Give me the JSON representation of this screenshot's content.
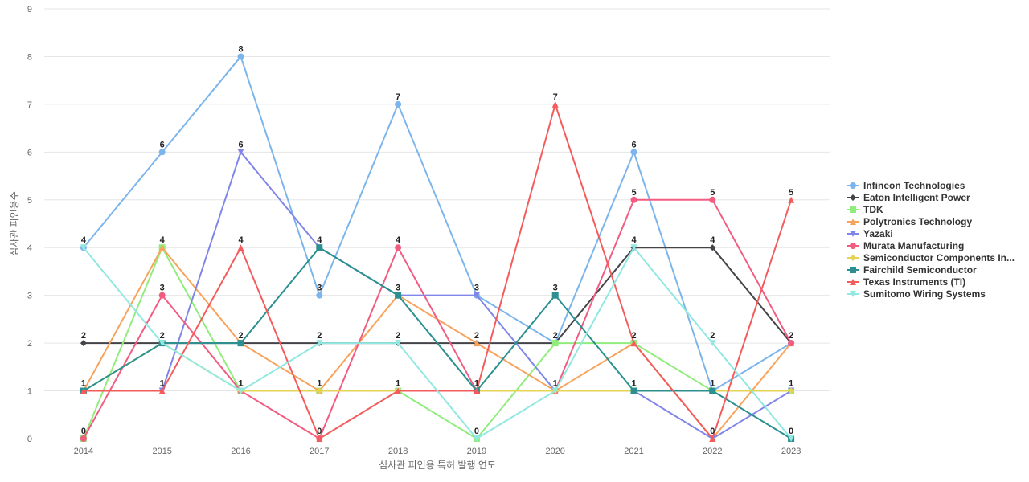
{
  "chart_data": {
    "type": "line",
    "title": "",
    "xlabel": "심사관 피인용 특허 발행 연도",
    "ylabel": "심사관 피인용수",
    "ylim": [
      0,
      9
    ],
    "grid": true,
    "legend_position": "right",
    "categories": [
      "2014",
      "2015",
      "2016",
      "2017",
      "2018",
      "2019",
      "2020",
      "2021",
      "2022",
      "2023"
    ],
    "series": [
      {
        "name": "Infineon Technologies",
        "color": "#7cb5ec",
        "marker": "circle",
        "values": [
          4,
          6,
          8,
          3,
          7,
          3,
          2,
          6,
          1,
          2
        ]
      },
      {
        "name": "Eaton Intelligent Power",
        "color": "#434348",
        "marker": "diamond",
        "values": [
          2,
          2,
          2,
          2,
          2,
          2,
          2,
          4,
          4,
          2
        ]
      },
      {
        "name": "TDK",
        "color": "#90ed7d",
        "marker": "square",
        "values": [
          0,
          4,
          1,
          1,
          1,
          0,
          2,
          2,
          1,
          1
        ]
      },
      {
        "name": "Polytronics Technology",
        "color": "#f7a35c",
        "marker": "triangle",
        "values": [
          1,
          4,
          2,
          1,
          3,
          2,
          1,
          2,
          0,
          2
        ]
      },
      {
        "name": "Yazaki",
        "color": "#8085e9",
        "marker": "triangle-down",
        "values": [
          1,
          1,
          6,
          4,
          3,
          3,
          1,
          1,
          0,
          1
        ]
      },
      {
        "name": "Murata Manufacturing",
        "color": "#f15c80",
        "marker": "circle",
        "values": [
          0,
          3,
          1,
          0,
          4,
          1,
          1,
          5,
          5,
          2
        ]
      },
      {
        "name": "Semiconductor Components In...",
        "color": "#e4d354",
        "marker": "diamond",
        "values": [
          1,
          2,
          1,
          1,
          1,
          1,
          1,
          1,
          1,
          1
        ]
      },
      {
        "name": "Fairchild Semiconductor",
        "color": "#2b908f",
        "marker": "square",
        "values": [
          1,
          2,
          2,
          4,
          3,
          1,
          3,
          1,
          1,
          0
        ]
      },
      {
        "name": "Texas Instruments (TI)",
        "color": "#f45b5b",
        "marker": "triangle",
        "values": [
          1,
          1,
          4,
          0,
          1,
          1,
          7,
          2,
          0,
          5
        ]
      },
      {
        "name": "Sumitomo Wiring Systems",
        "color": "#91e8e1",
        "marker": "triangle-down",
        "values": [
          4,
          2,
          1,
          2,
          2,
          0,
          1,
          4,
          2,
          0
        ]
      }
    ],
    "data_labels": [
      {
        "category": "2014",
        "series": [
          "Infineon Technologies",
          "Eaton Intelligent Power",
          "Polytronics Technology",
          "Murata Manufacturing"
        ]
      },
      {
        "category": "2015",
        "series": [
          "Infineon Technologies",
          "Eaton Intelligent Power",
          "TDK",
          "Murata Manufacturing",
          "Texas Instruments (TI)"
        ]
      },
      {
        "category": "2016",
        "series": [
          "Infineon Technologies",
          "Eaton Intelligent Power",
          "TDK",
          "Yazaki",
          "Texas Instruments (TI)"
        ]
      },
      {
        "category": "2017",
        "series": [
          "Infineon Technologies",
          "Eaton Intelligent Power",
          "TDK",
          "Yazaki",
          "Murata Manufacturing"
        ]
      },
      {
        "category": "2018",
        "series": [
          "Infineon Technologies",
          "Eaton Intelligent Power",
          "TDK",
          "Polytronics Technology",
          "Murata Manufacturing"
        ]
      },
      {
        "category": "2019",
        "series": [
          "Infineon Technologies",
          "Eaton Intelligent Power",
          "TDK",
          "Murata Manufacturing"
        ]
      },
      {
        "category": "2020",
        "series": [
          "Eaton Intelligent Power",
          "Polytronics Technology",
          "Fairchild Semiconductor",
          "Texas Instruments (TI)"
        ]
      },
      {
        "category": "2021",
        "series": [
          "Infineon Technologies",
          "Eaton Intelligent Power",
          "Polytronics Technology",
          "Yazaki",
          "Murata Manufacturing"
        ]
      },
      {
        "category": "2022",
        "series": [
          "Infineon Technologies",
          "Eaton Intelligent Power",
          "Polytronics Technology",
          "Murata Manufacturing",
          "Sumitomo Wiring Systems"
        ]
      },
      {
        "category": "2023",
        "series": [
          "Eaton Intelligent Power",
          "Yazaki",
          "Texas Instruments (TI)",
          "Fairchild Semiconductor"
        ]
      }
    ]
  }
}
